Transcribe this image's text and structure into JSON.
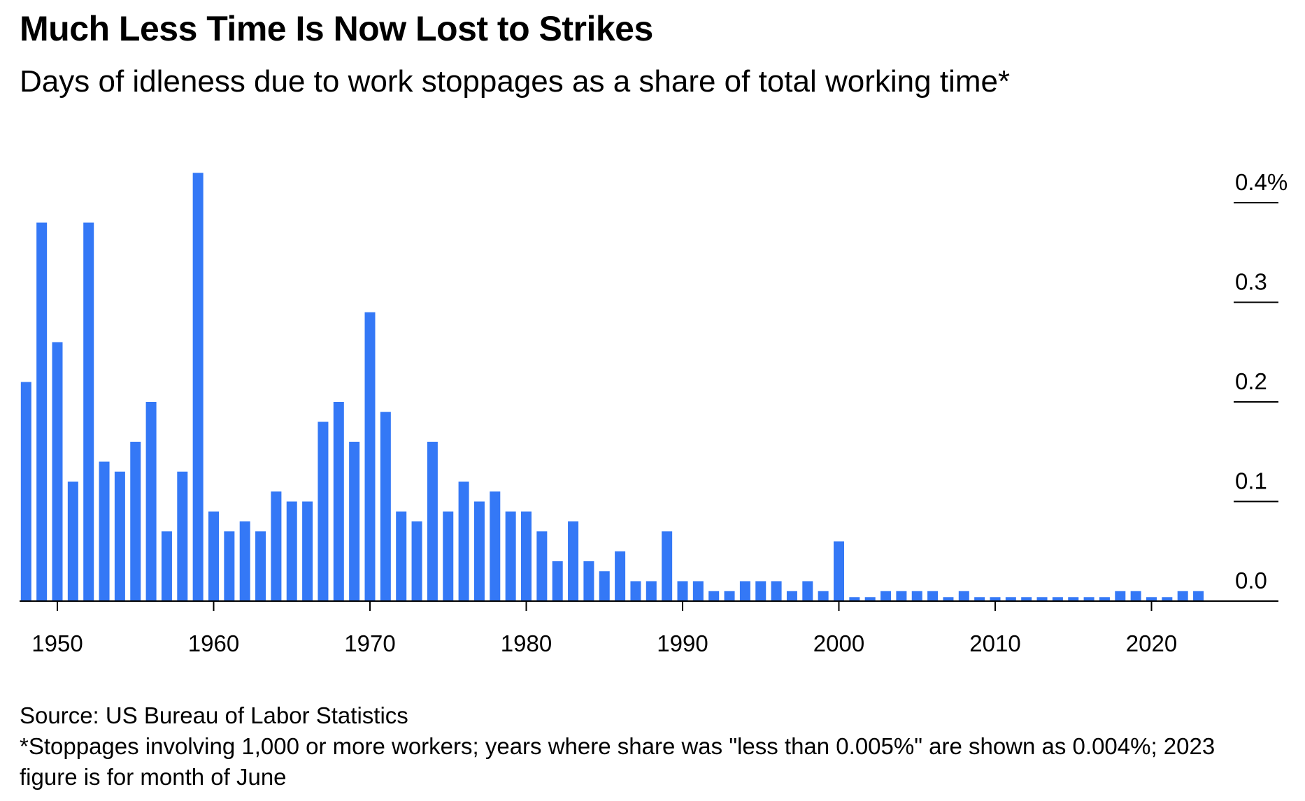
{
  "chart_data": {
    "type": "bar",
    "title": "Much Less Time Is Now Lost to Strikes",
    "subtitle": "Days of idleness due to work stoppages as a share of total working time*",
    "x": [
      1948,
      1949,
      1950,
      1951,
      1952,
      1953,
      1954,
      1955,
      1956,
      1957,
      1958,
      1959,
      1960,
      1961,
      1962,
      1963,
      1964,
      1965,
      1966,
      1967,
      1968,
      1969,
      1970,
      1971,
      1972,
      1973,
      1974,
      1975,
      1976,
      1977,
      1978,
      1979,
      1980,
      1981,
      1982,
      1983,
      1984,
      1985,
      1986,
      1987,
      1988,
      1989,
      1990,
      1991,
      1992,
      1993,
      1994,
      1995,
      1996,
      1997,
      1998,
      1999,
      2000,
      2001,
      2002,
      2003,
      2004,
      2005,
      2006,
      2007,
      2008,
      2009,
      2010,
      2011,
      2012,
      2013,
      2014,
      2015,
      2016,
      2017,
      2018,
      2019,
      2020,
      2021,
      2022,
      2023
    ],
    "values": [
      0.22,
      0.38,
      0.26,
      0.12,
      0.38,
      0.14,
      0.13,
      0.16,
      0.2,
      0.07,
      0.13,
      0.43,
      0.09,
      0.07,
      0.08,
      0.07,
      0.11,
      0.1,
      0.1,
      0.18,
      0.2,
      0.16,
      0.29,
      0.19,
      0.09,
      0.08,
      0.16,
      0.09,
      0.12,
      0.1,
      0.11,
      0.09,
      0.09,
      0.07,
      0.04,
      0.08,
      0.04,
      0.03,
      0.05,
      0.02,
      0.02,
      0.07,
      0.02,
      0.02,
      0.01,
      0.01,
      0.02,
      0.02,
      0.02,
      0.01,
      0.02,
      0.01,
      0.06,
      0.004,
      0.004,
      0.01,
      0.01,
      0.01,
      0.01,
      0.004,
      0.01,
      0.004,
      0.004,
      0.004,
      0.004,
      0.004,
      0.004,
      0.004,
      0.004,
      0.004,
      0.01,
      0.01,
      0.004,
      0.004,
      0.01,
      0.01
    ],
    "ylim": [
      0,
      0.4
    ],
    "y_ticks": [
      {
        "value": 0.0,
        "label": "0.0"
      },
      {
        "value": 0.1,
        "label": "0.1"
      },
      {
        "value": 0.2,
        "label": "0.2"
      },
      {
        "value": 0.3,
        "label": "0.3"
      },
      {
        "value": 0.4,
        "label": "0.4%"
      }
    ],
    "x_ticks": [
      {
        "value": 1950,
        "label": "1950"
      },
      {
        "value": 1960,
        "label": "1960"
      },
      {
        "value": 1970,
        "label": "1970"
      },
      {
        "value": 1980,
        "label": "1980"
      },
      {
        "value": 1990,
        "label": "1990"
      },
      {
        "value": 2000,
        "label": "2000"
      },
      {
        "value": 2010,
        "label": "2010"
      },
      {
        "value": 2020,
        "label": "2020"
      }
    ],
    "y_axis_side": "right",
    "grid": false,
    "bar_color": "#3478f6",
    "axis_color": "#000000"
  },
  "source": "Source: US Bureau of Labor Statistics",
  "footnote": "*Stoppages involving 1,000 or more workers; years where share was \"less than 0.005%\" are shown as 0.004%; 2023 figure is for month of June"
}
